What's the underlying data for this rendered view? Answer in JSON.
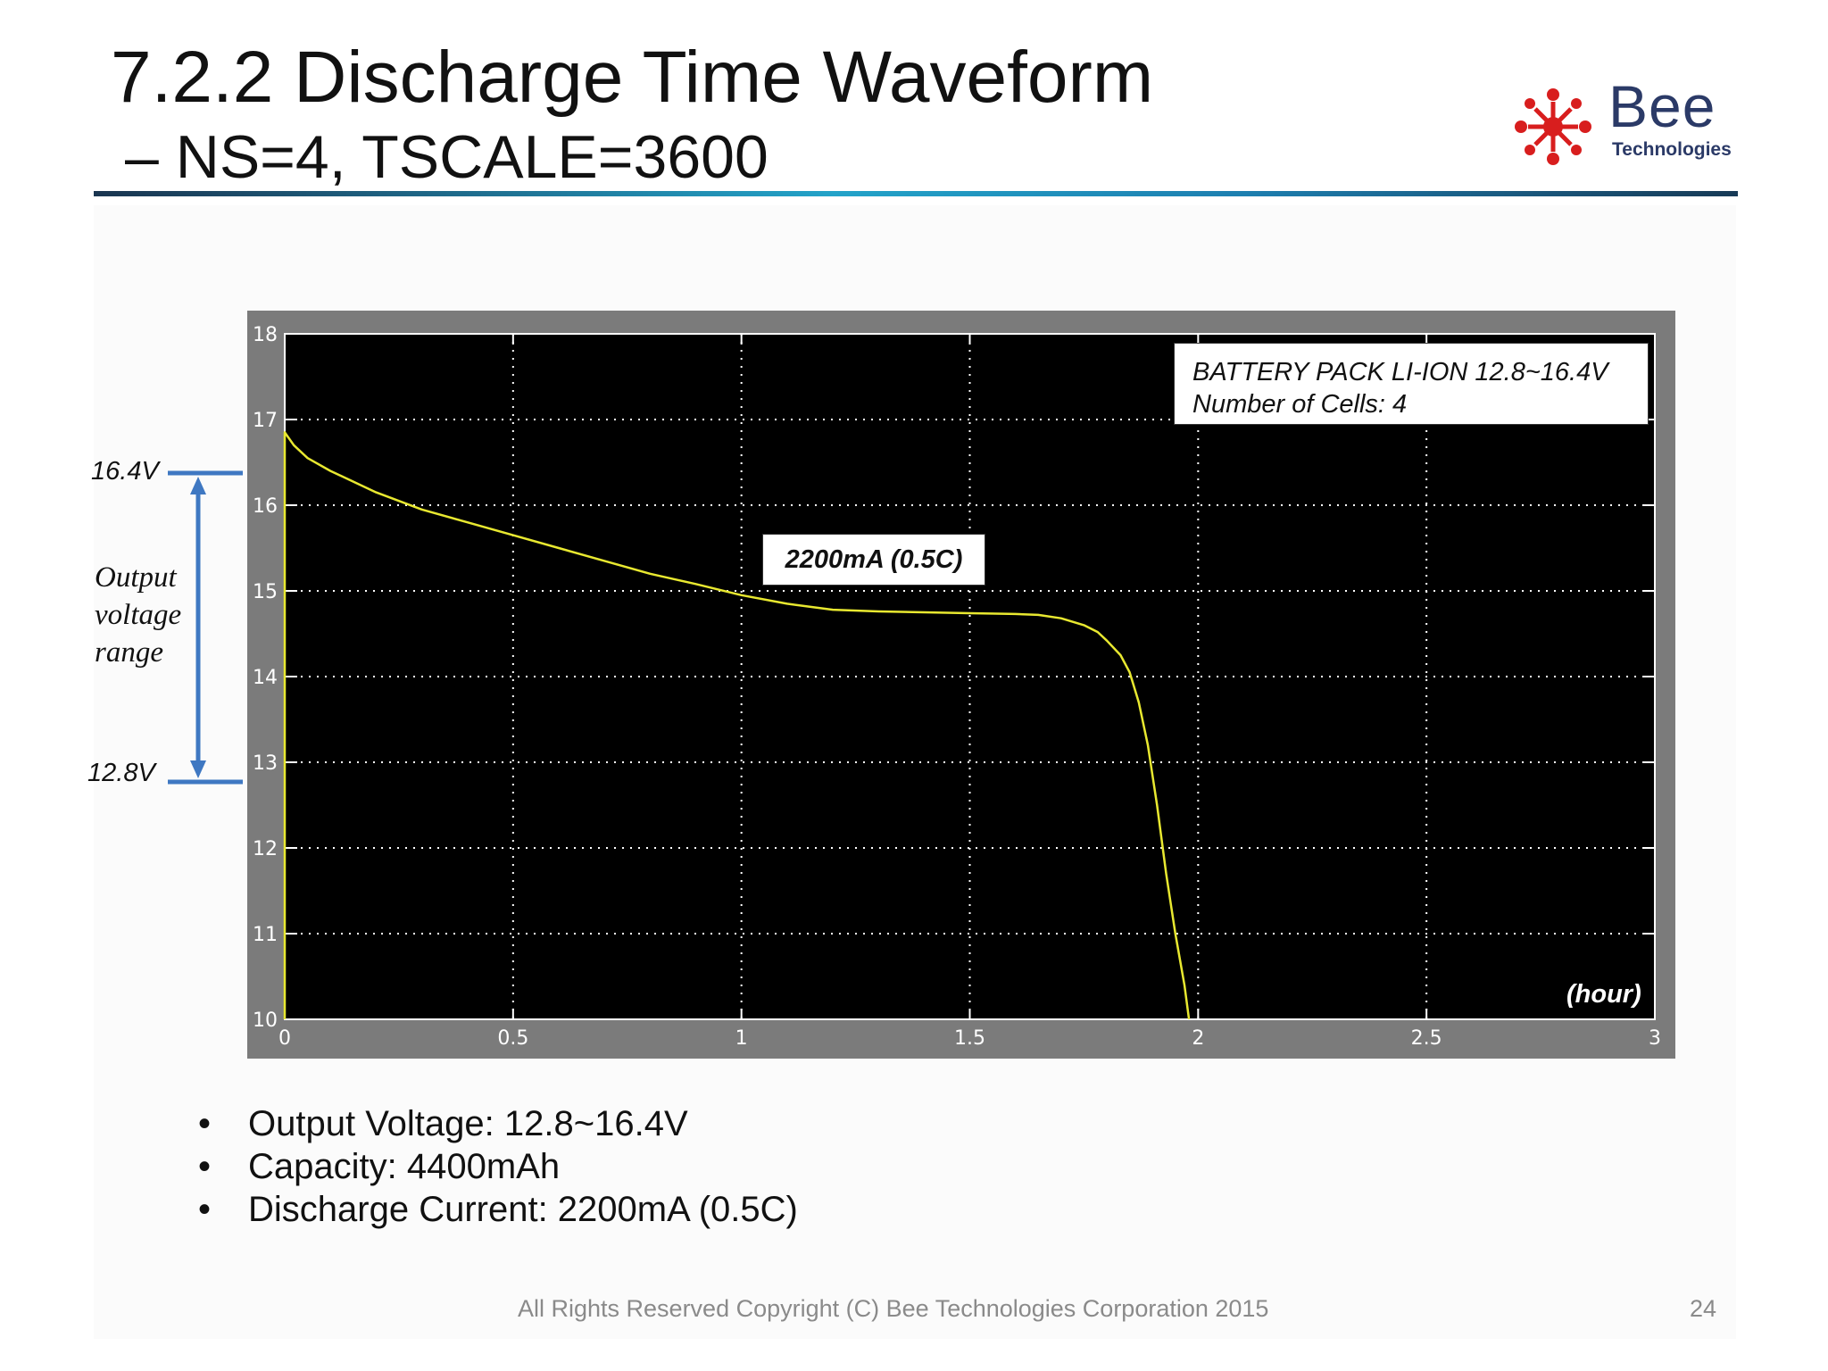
{
  "slide": {
    "title": "7.2.2 Discharge Time Waveform",
    "subtitle": "– NS=4, TSCALE=3600",
    "logo": {
      "brand": "Bee",
      "sub": "Technologies"
    },
    "footer": "All Rights Reserved Copyright (C) Bee Technologies Corporation 2015",
    "page_number": "24",
    "bullets": [
      "Output Voltage:  12.8~16.4V",
      "Capacity: 4400mAh",
      "Discharge Current: 2200mA (0.5C)"
    ],
    "range_annotation": {
      "top": "16.4V",
      "bottom": "12.8V",
      "text": "Output voltage range",
      "top_value": 16.4,
      "bottom_value": 12.8
    }
  },
  "chart_data": {
    "type": "line",
    "title": "",
    "xlabel": "(hour)",
    "ylabel": "",
    "xlim": [
      0,
      3
    ],
    "ylim": [
      10,
      18
    ],
    "x_ticks": [
      0,
      0.5,
      1,
      1.5,
      2,
      2.5,
      3
    ],
    "x_tick_labels": [
      "0",
      "0.5",
      "1",
      "1.5",
      "2",
      "2.5",
      "3"
    ],
    "y_ticks": [
      10,
      11,
      12,
      13,
      14,
      15,
      16,
      17,
      18
    ],
    "y_tick_labels": [
      "10",
      "11",
      "12",
      "13",
      "14",
      "15",
      "16",
      "17",
      "18"
    ],
    "grid": true,
    "background": "#000000",
    "legend": [
      "BATTERY PACK LI-ION 12.8~16.4V",
      "Number of Cells: 4"
    ],
    "annotation": "2200mA (0.5C)",
    "series": [
      {
        "color": "#e8e830",
        "x": [
          0,
          0,
          0.02,
          0.05,
          0.1,
          0.2,
          0.3,
          0.4,
          0.5,
          0.6,
          0.7,
          0.8,
          0.9,
          1.0,
          1.1,
          1.2,
          1.3,
          1.4,
          1.5,
          1.6,
          1.65,
          1.7,
          1.75,
          1.78,
          1.8,
          1.83,
          1.85,
          1.87,
          1.89,
          1.91,
          1.93,
          1.95,
          1.97,
          1.98
        ],
        "y": [
          10,
          16.85,
          16.7,
          16.55,
          16.4,
          16.15,
          15.95,
          15.8,
          15.65,
          15.5,
          15.35,
          15.2,
          15.08,
          14.95,
          14.85,
          14.78,
          14.76,
          14.75,
          14.74,
          14.73,
          14.72,
          14.68,
          14.6,
          14.52,
          14.42,
          14.25,
          14.05,
          13.7,
          13.2,
          12.5,
          11.7,
          11.0,
          10.4,
          10.0
        ]
      }
    ]
  }
}
